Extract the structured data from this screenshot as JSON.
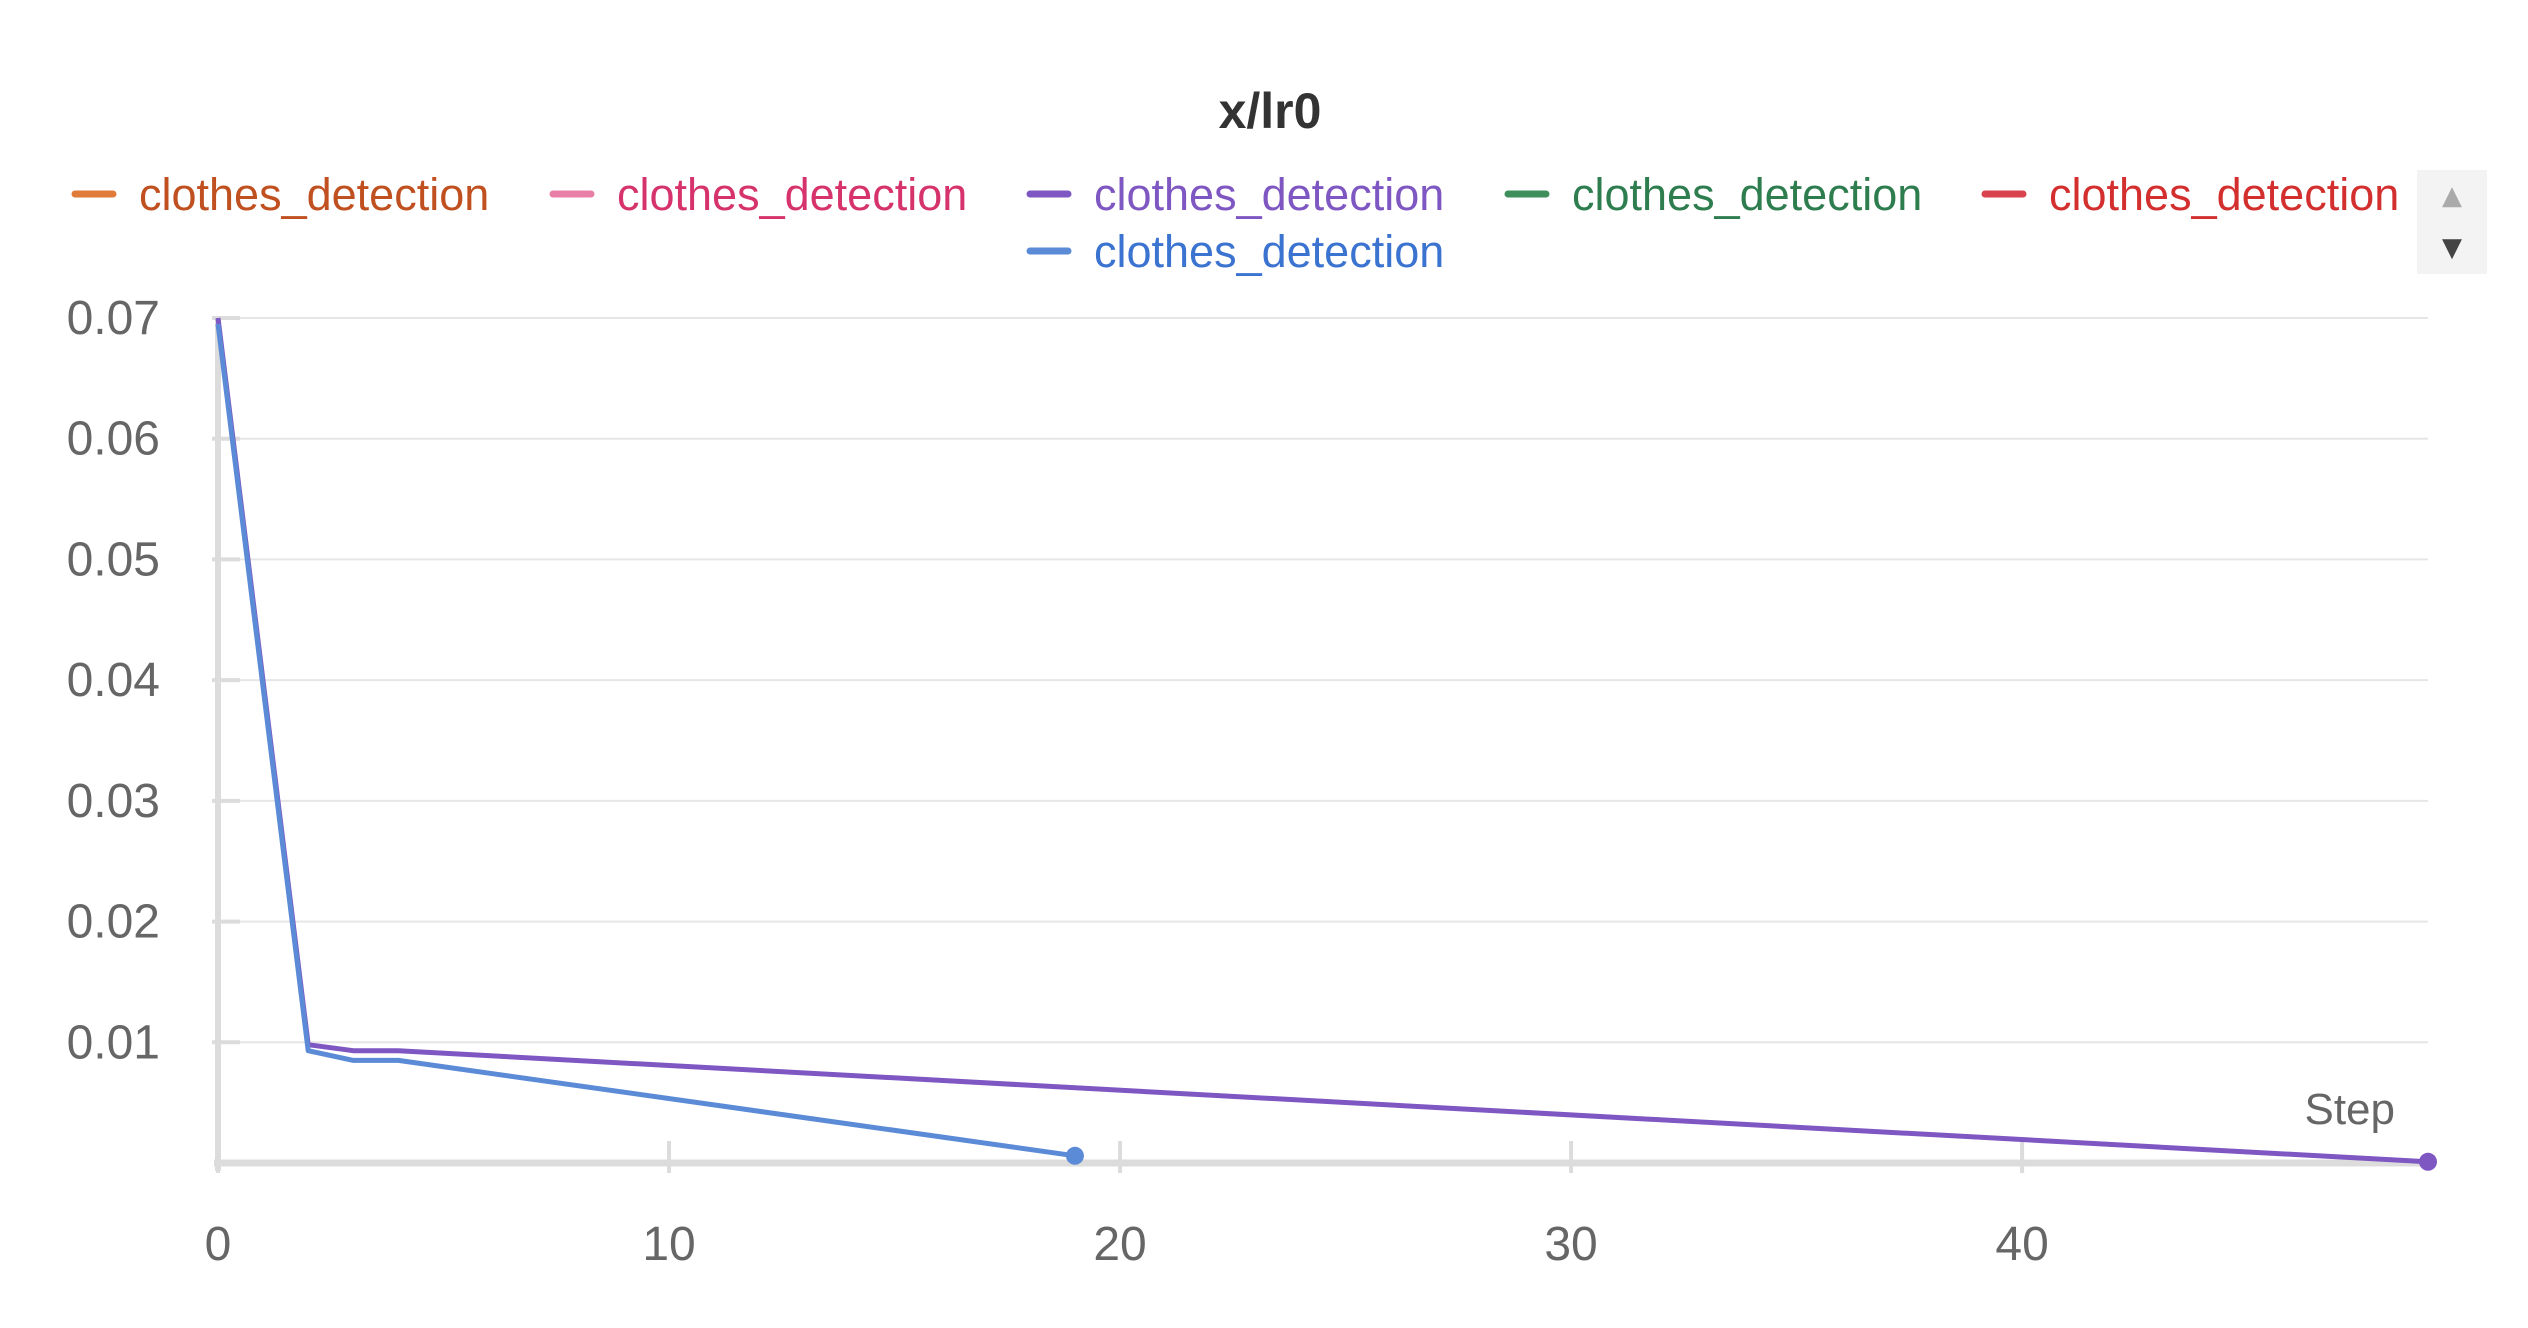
{
  "chart_data": {
    "type": "line",
    "title": "x/lr0",
    "xlabel": "Step",
    "ylabel": "",
    "xlim": [
      0,
      49
    ],
    "ylim": [
      0,
      0.07
    ],
    "x_ticks": [
      0,
      10,
      20,
      30,
      40
    ],
    "x_tick_labels": [
      "0",
      "10",
      "20",
      "30",
      "40"
    ],
    "y_ticks": [
      0.01,
      0.02,
      0.03,
      0.04,
      0.05,
      0.06,
      0.07
    ],
    "y_tick_labels": [
      "0.01",
      "0.02",
      "0.03",
      "0.04",
      "0.05",
      "0.06",
      "0.07"
    ],
    "grid": true,
    "legend": {
      "position": "top",
      "entries": [
        {
          "name": "clothes_detection",
          "color": "#e07b39",
          "text_color": "#c0501f"
        },
        {
          "name": "clothes_detection",
          "color": "#e87fa6",
          "text_color": "#d6336c"
        },
        {
          "name": "clothes_detection",
          "color": "#7e57c2",
          "text_color": "#7e57c2"
        },
        {
          "name": "clothes_detection",
          "color": "#3f8f5c",
          "text_color": "#2e7d4f"
        },
        {
          "name": "clothes_detection",
          "color": "#d9434e",
          "text_color": "#d32f2f"
        },
        {
          "name": "clothes_detection",
          "color": "#5b8ad6",
          "text_color": "#3b73d0"
        }
      ]
    },
    "series": [
      {
        "name": "clothes_detection",
        "color": "#7e57c2",
        "x": [
          0,
          2,
          3,
          4,
          49
        ],
        "y": [
          0.07,
          0.0098,
          0.0093,
          0.0093,
          0.0001
        ],
        "end_marker": true
      },
      {
        "name": "clothes_detection",
        "color": "#5b8ad6",
        "x": [
          0,
          2,
          3,
          4,
          19
        ],
        "y": [
          0.0695,
          0.0093,
          0.0085,
          0.0085,
          0.0006
        ],
        "end_marker": true
      }
    ]
  },
  "legend_scroll": {
    "up_icon": "triangle-up-icon",
    "down_icon": "triangle-down-icon",
    "up_glyph": "▲",
    "down_glyph": "▼"
  }
}
